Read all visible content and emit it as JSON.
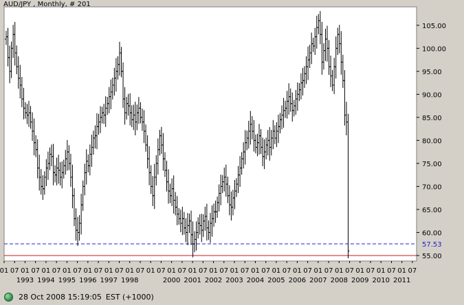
{
  "chart_data": {
    "type": "ohlc",
    "title": "AUD/JPY , Monthly, # 201",
    "y_ticks": [
      "105.00",
      "100.00",
      "95.00",
      "90.00",
      "85.00",
      "80.00",
      "75.00",
      "70.00",
      "65.00",
      "60.00",
      "55.00"
    ],
    "y_tick_values": [
      105,
      100,
      95,
      90,
      85,
      80,
      75,
      70,
      65,
      60,
      55
    ],
    "ylim": [
      53.8,
      109.0
    ],
    "x_start": 1992.0,
    "x_end": 2011.7,
    "year_labels": [
      "1993",
      "1994",
      "1995",
      "1996",
      "1997",
      "1998",
      "2000",
      "2001",
      "2002",
      "2003",
      "2004",
      "2005",
      "2006",
      "2007",
      "2008",
      "2009",
      "2010",
      "2011"
    ],
    "month_tick_labels": [
      "01",
      "07"
    ],
    "reference_line": {
      "value": 57.53,
      "label": "57.53",
      "color": "#2020d0"
    },
    "baseline_color": "#d01818",
    "grid": false,
    "monthly_closes": [
      102.5,
      98.0,
      95.0,
      100.0,
      103.0,
      99.0,
      96.0,
      93.5,
      92.0,
      89.0,
      87.0,
      86.0,
      85.5,
      86.0,
      84.0,
      82.0,
      79.5,
      78.0,
      74.0,
      72.0,
      70.0,
      69.5,
      72.0,
      74.0,
      75.0,
      77.0,
      76.5,
      73.0,
      72.5,
      74.0,
      73.5,
      72.0,
      73.0,
      74.5,
      76.0,
      77.5,
      75.0,
      72.0,
      68.0,
      63.0,
      60.5,
      60.0,
      62.0,
      66.0,
      70.0,
      73.0,
      75.5,
      74.5,
      77.0,
      78.5,
      80.5,
      81.0,
      83.0,
      84.0,
      85.0,
      86.0,
      85.5,
      87.0,
      88.0,
      89.5,
      90.5,
      92.0,
      93.5,
      95.0,
      96.5,
      99.0,
      95.0,
      89.0,
      86.0,
      88.0,
      87.5,
      86.0,
      84.5,
      85.5,
      84.0,
      86.0,
      87.0,
      85.0,
      84.0,
      82.0,
      79.0,
      76.0,
      73.0,
      70.0,
      68.0,
      72.0,
      75.0,
      78.0,
      81.0,
      79.0,
      76.0,
      73.5,
      71.0,
      69.0,
      68.0,
      69.5,
      67.0,
      65.5,
      64.0,
      63.0,
      62.0,
      63.0,
      61.0,
      60.0,
      61.5,
      62.5,
      59.5,
      57.5,
      58.5,
      60.0,
      62.0,
      61.5,
      60.5,
      62.5,
      63.5,
      61.0,
      60.0,
      62.0,
      63.0,
      64.5,
      64.5,
      66.5,
      68.5,
      70.0,
      71.0,
      72.0,
      70.5,
      68.0,
      66.0,
      65.5,
      67.5,
      69.0,
      70.5,
      72.5,
      74.0,
      76.0,
      77.5,
      79.5,
      80.5,
      82.0,
      83.5,
      82.0,
      80.0,
      78.5,
      79.5,
      81.0,
      78.5,
      76.5,
      77.5,
      79.0,
      80.0,
      78.5,
      80.5,
      82.0,
      80.5,
      82.0,
      83.0,
      84.5,
      85.5,
      86.5,
      87.0,
      88.5,
      89.5,
      88.0,
      86.5,
      87.5,
      89.0,
      90.0,
      91.0,
      92.5,
      93.0,
      94.5,
      96.0,
      97.5,
      99.0,
      101.0,
      100.5,
      102.5,
      104.5,
      106.0,
      103.0,
      97.0,
      99.5,
      102.0,
      100.0,
      96.0,
      94.0,
      92.0,
      96.0,
      100.0,
      103.0,
      101.0,
      97.0,
      93.0,
      85.5,
      84.0,
      56.0
    ]
  },
  "status": {
    "timestamp": "28 Oct 2008 15:19:05",
    "timezone": "EST (+1000)",
    "indicator_color": "#2d8c4a"
  }
}
